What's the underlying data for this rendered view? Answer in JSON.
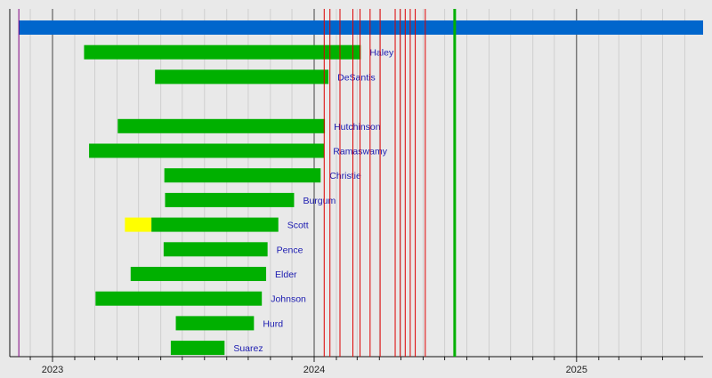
{
  "chart_data": {
    "type": "timeline",
    "x_axis": {
      "type": "date",
      "range": [
        "2022-11-12",
        "2025-06-27"
      ],
      "tick_labels": [
        "2023",
        "2024",
        "2025"
      ],
      "minor_ticks": "monthly",
      "grid": true
    },
    "colors": {
      "blue": "#0066cc",
      "green": "#00b000",
      "yellow": "#ffff00",
      "primary_line": "#dd0000",
      "convention_line": "#00b000",
      "announcement_line": "#800080",
      "label": "#1a1ab0"
    },
    "markers": {
      "announcement": "2022-11-15",
      "primaries": [
        "2024-01-15",
        "2024-01-23",
        "2024-02-06",
        "2024-02-24",
        "2024-03-05",
        "2024-03-19",
        "2024-04-02",
        "2024-04-23",
        "2024-04-30",
        "2024-05-07",
        "2024-05-14",
        "2024-05-21",
        "2024-06-04"
      ],
      "convention": "2024-07-15"
    },
    "rows": [
      {
        "label": "",
        "segments": [
          {
            "start": "2022-11-15",
            "end": "2025-06-27",
            "color": "blue"
          }
        ]
      },
      {
        "label": "Haley",
        "segments": [
          {
            "start": "2023-02-14",
            "end": "2024-03-06",
            "color": "green"
          }
        ]
      },
      {
        "label": "DeSantis",
        "segments": [
          {
            "start": "2023-05-24",
            "end": "2024-01-21",
            "color": "green"
          }
        ]
      },
      {
        "label": "",
        "segments": []
      },
      {
        "label": "Hutchinson",
        "segments": [
          {
            "start": "2023-04-02",
            "end": "2024-01-16",
            "color": "green"
          }
        ]
      },
      {
        "label": "Ramaswamy",
        "segments": [
          {
            "start": "2023-02-21",
            "end": "2024-01-15",
            "color": "green"
          }
        ]
      },
      {
        "label": "Christie",
        "segments": [
          {
            "start": "2023-06-06",
            "end": "2024-01-10",
            "color": "green"
          }
        ]
      },
      {
        "label": "Burgum",
        "segments": [
          {
            "start": "2023-06-07",
            "end": "2023-12-04",
            "color": "green"
          }
        ]
      },
      {
        "label": "Scott",
        "segments": [
          {
            "start": "2023-04-12",
            "end": "2023-05-19",
            "color": "yellow"
          },
          {
            "start": "2023-05-19",
            "end": "2023-11-12",
            "color": "green"
          }
        ]
      },
      {
        "label": "Pence",
        "segments": [
          {
            "start": "2023-06-05",
            "end": "2023-10-28",
            "color": "green"
          }
        ]
      },
      {
        "label": "Elder",
        "segments": [
          {
            "start": "2023-04-20",
            "end": "2023-10-26",
            "color": "green"
          }
        ]
      },
      {
        "label": "Johnson",
        "segments": [
          {
            "start": "2023-03-02",
            "end": "2023-10-20",
            "color": "green"
          }
        ]
      },
      {
        "label": "Hurd",
        "segments": [
          {
            "start": "2023-06-22",
            "end": "2023-10-09",
            "color": "green"
          }
        ]
      },
      {
        "label": "Suarez",
        "segments": [
          {
            "start": "2023-06-15",
            "end": "2023-08-29",
            "color": "green"
          }
        ]
      }
    ]
  }
}
